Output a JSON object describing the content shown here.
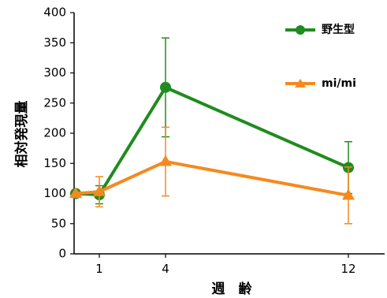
{
  "chart_data": {
    "type": "line",
    "xlabel": "週　齢",
    "ylabel": "相対発現量",
    "x": [
      1,
      4,
      12
    ],
    "x_points": [
      0.5,
      1,
      4,
      12
    ],
    "xticks": [
      "1",
      "4",
      "12"
    ],
    "ylim": [
      0,
      400
    ],
    "yticks": [
      0,
      50,
      100,
      150,
      200,
      250,
      300,
      350,
      400
    ],
    "grid": false,
    "legend_position": "top-right",
    "series": [
      {
        "name": "野生型",
        "color": "#1f8c1f",
        "marker": "circle",
        "x": [
          0.5,
          1,
          4,
          12
        ],
        "y": [
          100,
          98,
          276,
          143
        ],
        "error": [
          null,
          15,
          82,
          43
        ]
      },
      {
        "name": "mi/mi",
        "color": "#f5891f",
        "marker": "triangle",
        "x": [
          0.5,
          1,
          4,
          12
        ],
        "y": [
          100,
          103,
          153,
          97
        ],
        "error": [
          null,
          25,
          57,
          47
        ]
      }
    ]
  }
}
